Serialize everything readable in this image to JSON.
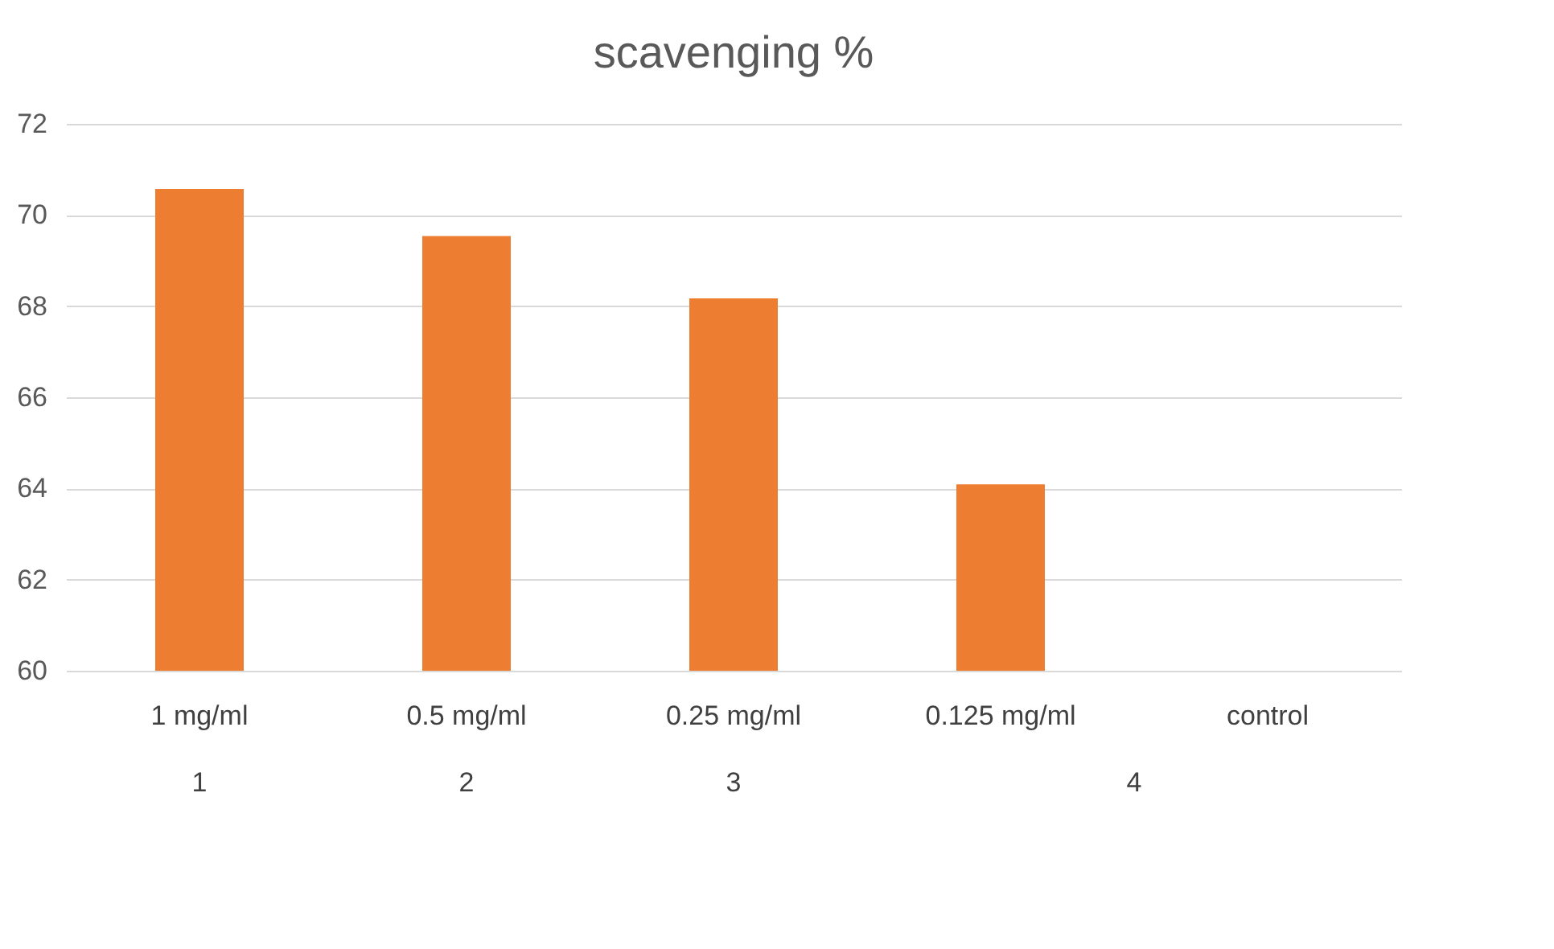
{
  "chart_data": {
    "type": "bar",
    "title": "scavenging %",
    "categories": [
      "1 mg/ml",
      "0.5 mg/ml",
      "0.25 mg/ml",
      "0.125 mg/ml",
      "control"
    ],
    "series": [
      {
        "color": "#ed7d31",
        "values": [
          70.57,
          69.54,
          68.17,
          64.09,
          null
        ]
      }
    ],
    "ylim": [
      60,
      72
    ],
    "yticks": [
      60,
      62,
      64,
      66,
      68,
      70,
      72
    ],
    "grid": "y",
    "annotations": [
      "1",
      "2",
      "3",
      "4"
    ]
  }
}
